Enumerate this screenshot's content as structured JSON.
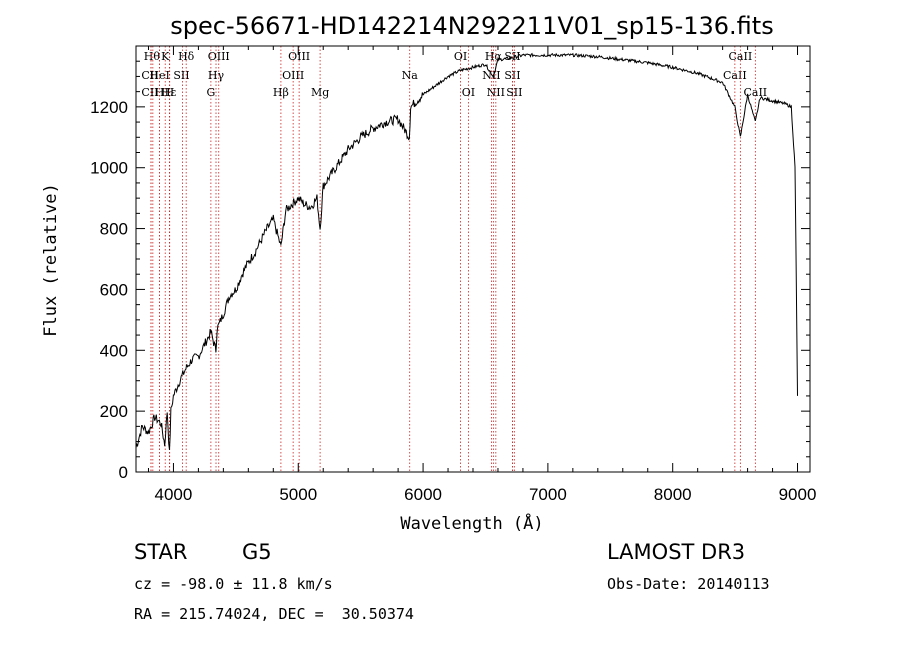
{
  "chart_data": {
    "type": "line",
    "title": "spec-56671-HD142214N292211V01_sp15-136.fits",
    "xlabel": "Wavelength (Å)",
    "ylabel": "Flux (relative)",
    "xlim": [
      3700,
      9100
    ],
    "ylim": [
      0,
      1400
    ],
    "xticks": [
      4000,
      5000,
      6000,
      7000,
      8000,
      9000
    ],
    "yticks": [
      0,
      200,
      400,
      600,
      800,
      1000,
      1200
    ],
    "series": [
      {
        "name": "spectrum",
        "x": [
          3700,
          3750,
          3800,
          3850,
          3900,
          3930,
          3950,
          3968,
          3980,
          4000,
          4050,
          4100,
          4150,
          4200,
          4250,
          4300,
          4340,
          4350,
          4400,
          4450,
          4500,
          4550,
          4600,
          4650,
          4700,
          4750,
          4800,
          4861,
          4900,
          4950,
          5000,
          5050,
          5100,
          5150,
          5175,
          5200,
          5300,
          5400,
          5500,
          5600,
          5700,
          5800,
          5890,
          5900,
          6000,
          6100,
          6200,
          6300,
          6400,
          6500,
          6563,
          6600,
          6700,
          6800,
          7000,
          7200,
          7400,
          7600,
          7800,
          8000,
          8200,
          8400,
          8498,
          8542,
          8600,
          8662,
          8700,
          8800,
          8900,
          8950,
          8980,
          9000
        ],
        "y": [
          80,
          150,
          130,
          180,
          160,
          90,
          200,
          60,
          200,
          250,
          300,
          340,
          370,
          380,
          420,
          460,
          400,
          470,
          520,
          580,
          600,
          650,
          690,
          720,
          760,
          800,
          830,
          740,
          860,
          880,
          900,
          880,
          870,
          900,
          800,
          940,
          1000,
          1060,
          1100,
          1130,
          1150,
          1160,
          1100,
          1200,
          1240,
          1270,
          1300,
          1320,
          1330,
          1340,
          1300,
          1355,
          1360,
          1370,
          1370,
          1370,
          1365,
          1355,
          1345,
          1330,
          1310,
          1280,
          1200,
          1100,
          1240,
          1150,
          1230,
          1220,
          1210,
          1200,
          1000,
          250
        ]
      }
    ],
    "lines": [
      {
        "wl": 3835,
        "label": "Hθ",
        "row": 0,
        "dx": -1
      },
      {
        "wl": 3820,
        "label": "CII",
        "row": 1,
        "dx": -1
      },
      {
        "wl": 3820,
        "label": "CII",
        "row": 2,
        "dx": -1
      },
      {
        "wl": 3889,
        "label": "H",
        "row": 2,
        "dx": 0
      },
      {
        "wl": 3934,
        "label": "K",
        "row": 0,
        "dx": 0
      },
      {
        "wl": 3968,
        "label": "H",
        "row": 2,
        "dx": 0
      },
      {
        "wl": 3889,
        "label": "HeI",
        "row": 1,
        "dx": 0
      },
      {
        "wl": 3970,
        "label": "Hε",
        "row": 2,
        "dx": -1
      },
      {
        "wl": 4072,
        "label": "SII",
        "row": 1,
        "dx": -1
      },
      {
        "wl": 4102,
        "label": "Hδ",
        "row": 0,
        "dx": 0
      },
      {
        "wl": 4300,
        "label": "G",
        "row": 2,
        "dx": 0
      },
      {
        "wl": 4341,
        "label": "Hγ",
        "row": 1,
        "dx": 0
      },
      {
        "wl": 4363,
        "label": "OIII",
        "row": 0,
        "dx": 0
      },
      {
        "wl": 4861,
        "label": "Hβ",
        "row": 2,
        "dx": 0
      },
      {
        "wl": 4959,
        "label": "OIII",
        "row": 1,
        "dx": 0
      },
      {
        "wl": 5007,
        "label": "OIII",
        "row": 0,
        "dx": 0
      },
      {
        "wl": 5175,
        "label": "Mg",
        "row": 2,
        "dx": 0
      },
      {
        "wl": 5893,
        "label": "Na",
        "row": 1,
        "dx": 0
      },
      {
        "wl": 6300,
        "label": "OI",
        "row": 0,
        "dx": 0
      },
      {
        "wl": 6363,
        "label": "OI",
        "row": 2,
        "dx": 0
      },
      {
        "wl": 6548,
        "label": "NII",
        "row": 1,
        "dx": 0
      },
      {
        "wl": 6563,
        "label": "Hα",
        "row": 0,
        "dx": 0
      },
      {
        "wl": 6583,
        "label": "NII",
        "row": 2,
        "dx": 0
      },
      {
        "wl": 6716,
        "label": "SII",
        "row": 0,
        "dx": 0
      },
      {
        "wl": 6716,
        "label": "SII",
        "row": 1,
        "dx": 0
      },
      {
        "wl": 6731,
        "label": "SII",
        "row": 2,
        "dx": 0
      },
      {
        "wl": 8498,
        "label": "CaII",
        "row": 1,
        "dx": 0
      },
      {
        "wl": 8542,
        "label": "CaII",
        "row": 0,
        "dx": 0
      },
      {
        "wl": 8662,
        "label": "CaII",
        "row": 2,
        "dx": 0
      }
    ]
  },
  "info": {
    "class": "STAR",
    "subclass": "G5",
    "cz": "cz = -98.0 ± 11.8 km/s",
    "coords": "RA = 215.74024, DEC =  30.50374",
    "survey": "LAMOST DR3",
    "obs_date": "Obs-Date: 20140113"
  },
  "colors": {
    "line_marker": "#cc2222",
    "spectrum": "#000000"
  }
}
